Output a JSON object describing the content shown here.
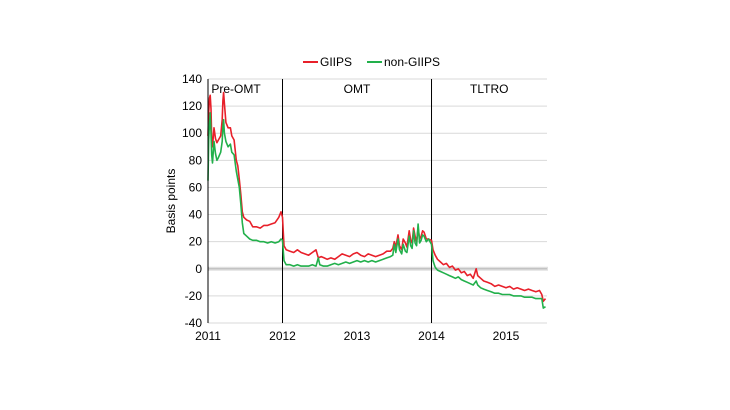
{
  "chart_data": {
    "type": "line",
    "title": "",
    "xlabel": "",
    "ylabel": "Basis points",
    "ylim": [
      -40,
      140
    ],
    "yticks": [
      -40,
      -20,
      0,
      20,
      40,
      60,
      80,
      100,
      120,
      140
    ],
    "xlim": [
      2011.0,
      2015.55
    ],
    "xticks": [
      2011,
      2012,
      2013,
      2014,
      2015
    ],
    "grid": true,
    "legend": "top-center",
    "period_dividers": [
      2012.0,
      2014.0
    ],
    "period_labels": [
      "Pre-OMT",
      "OMT",
      "TLTRO"
    ],
    "series": [
      {
        "name": "GIIPS",
        "color": "#e8202a",
        "points": [
          [
            2011.0,
            98
          ],
          [
            2011.01,
            115
          ],
          [
            2011.02,
            126
          ],
          [
            2011.03,
            128
          ],
          [
            2011.04,
            118
          ],
          [
            2011.05,
            96
          ],
          [
            2011.06,
            90
          ],
          [
            2011.08,
            104
          ],
          [
            2011.1,
            96
          ],
          [
            2011.12,
            93
          ],
          [
            2011.14,
            95
          ],
          [
            2011.17,
            98
          ],
          [
            2011.19,
            110
          ],
          [
            2011.2,
            124
          ],
          [
            2011.21,
            130
          ],
          [
            2011.22,
            122
          ],
          [
            2011.24,
            108
          ],
          [
            2011.27,
            104
          ],
          [
            2011.3,
            104
          ],
          [
            2011.32,
            98
          ],
          [
            2011.35,
            95
          ],
          [
            2011.38,
            80
          ],
          [
            2011.4,
            76
          ],
          [
            2011.42,
            66
          ],
          [
            2011.44,
            55
          ],
          [
            2011.46,
            42
          ],
          [
            2011.48,
            38
          ],
          [
            2011.52,
            36
          ],
          [
            2011.56,
            35
          ],
          [
            2011.6,
            31
          ],
          [
            2011.65,
            31
          ],
          [
            2011.7,
            30
          ],
          [
            2011.75,
            32
          ],
          [
            2011.8,
            32
          ],
          [
            2011.85,
            33
          ],
          [
            2011.9,
            34
          ],
          [
            2011.95,
            38
          ],
          [
            2011.98,
            42
          ],
          [
            2012.0,
            38
          ],
          [
            2012.02,
            17
          ],
          [
            2012.05,
            14
          ],
          [
            2012.1,
            13
          ],
          [
            2012.15,
            12
          ],
          [
            2012.2,
            14
          ],
          [
            2012.25,
            12
          ],
          [
            2012.3,
            11
          ],
          [
            2012.35,
            10
          ],
          [
            2012.4,
            12
          ],
          [
            2012.45,
            14
          ],
          [
            2012.48,
            8
          ],
          [
            2012.52,
            9
          ],
          [
            2012.56,
            8
          ],
          [
            2012.6,
            7
          ],
          [
            2012.65,
            8
          ],
          [
            2012.7,
            7
          ],
          [
            2012.75,
            9
          ],
          [
            2012.8,
            11
          ],
          [
            2012.85,
            10
          ],
          [
            2012.9,
            9
          ],
          [
            2012.95,
            11
          ],
          [
            2013.0,
            12
          ],
          [
            2013.05,
            10
          ],
          [
            2013.1,
            9
          ],
          [
            2013.15,
            11
          ],
          [
            2013.2,
            10
          ],
          [
            2013.25,
            9
          ],
          [
            2013.3,
            10
          ],
          [
            2013.35,
            11
          ],
          [
            2013.4,
            13
          ],
          [
            2013.45,
            13
          ],
          [
            2013.48,
            15
          ],
          [
            2013.5,
            20
          ],
          [
            2013.52,
            16
          ],
          [
            2013.55,
            25
          ],
          [
            2013.57,
            17
          ],
          [
            2013.6,
            14
          ],
          [
            2013.62,
            22
          ],
          [
            2013.65,
            19
          ],
          [
            2013.67,
            16
          ],
          [
            2013.7,
            28
          ],
          [
            2013.72,
            21
          ],
          [
            2013.74,
            19
          ],
          [
            2013.76,
            30
          ],
          [
            2013.78,
            24
          ],
          [
            2013.8,
            20
          ],
          [
            2013.82,
            30
          ],
          [
            2013.84,
            22
          ],
          [
            2013.86,
            24
          ],
          [
            2013.88,
            28
          ],
          [
            2013.9,
            27
          ],
          [
            2013.93,
            22
          ],
          [
            2013.96,
            22
          ],
          [
            2014.0,
            21
          ],
          [
            2014.02,
            14
          ],
          [
            2014.05,
            10
          ],
          [
            2014.08,
            7
          ],
          [
            2014.12,
            5
          ],
          [
            2014.16,
            3
          ],
          [
            2014.2,
            4
          ],
          [
            2014.24,
            1
          ],
          [
            2014.28,
            2
          ],
          [
            2014.32,
            -1
          ],
          [
            2014.36,
            0
          ],
          [
            2014.4,
            -3
          ],
          [
            2014.44,
            -2
          ],
          [
            2014.48,
            -5
          ],
          [
            2014.52,
            -4
          ],
          [
            2014.56,
            -7
          ],
          [
            2014.6,
            0
          ],
          [
            2014.62,
            -5
          ],
          [
            2014.66,
            -7
          ],
          [
            2014.7,
            -9
          ],
          [
            2014.75,
            -10
          ],
          [
            2014.8,
            -11
          ],
          [
            2014.85,
            -13
          ],
          [
            2014.9,
            -12
          ],
          [
            2014.95,
            -13
          ],
          [
            2015.0,
            -14
          ],
          [
            2015.05,
            -13
          ],
          [
            2015.1,
            -15
          ],
          [
            2015.15,
            -14
          ],
          [
            2015.2,
            -15
          ],
          [
            2015.25,
            -16
          ],
          [
            2015.3,
            -15
          ],
          [
            2015.35,
            -16
          ],
          [
            2015.4,
            -17
          ],
          [
            2015.45,
            -16
          ],
          [
            2015.48,
            -19
          ],
          [
            2015.5,
            -24
          ],
          [
            2015.53,
            -22
          ]
        ]
      },
      {
        "name": "non-GIIPS",
        "color": "#22b04b",
        "points": [
          [
            2011.0,
            65
          ],
          [
            2011.01,
            95
          ],
          [
            2011.02,
            108
          ],
          [
            2011.03,
            115
          ],
          [
            2011.04,
            100
          ],
          [
            2011.05,
            84
          ],
          [
            2011.06,
            78
          ],
          [
            2011.08,
            94
          ],
          [
            2011.1,
            85
          ],
          [
            2011.12,
            80
          ],
          [
            2011.14,
            82
          ],
          [
            2011.17,
            86
          ],
          [
            2011.19,
            94
          ],
          [
            2011.2,
            105
          ],
          [
            2011.21,
            110
          ],
          [
            2011.22,
            100
          ],
          [
            2011.24,
            94
          ],
          [
            2011.27,
            90
          ],
          [
            2011.3,
            92
          ],
          [
            2011.32,
            86
          ],
          [
            2011.35,
            84
          ],
          [
            2011.38,
            72
          ],
          [
            2011.4,
            66
          ],
          [
            2011.42,
            60
          ],
          [
            2011.44,
            48
          ],
          [
            2011.46,
            34
          ],
          [
            2011.48,
            26
          ],
          [
            2011.52,
            24
          ],
          [
            2011.56,
            22
          ],
          [
            2011.6,
            21
          ],
          [
            2011.65,
            21
          ],
          [
            2011.7,
            20
          ],
          [
            2011.75,
            20
          ],
          [
            2011.8,
            19
          ],
          [
            2011.85,
            20
          ],
          [
            2011.9,
            19
          ],
          [
            2011.95,
            20
          ],
          [
            2011.98,
            22
          ],
          [
            2012.0,
            21
          ],
          [
            2012.02,
            6
          ],
          [
            2012.05,
            3
          ],
          [
            2012.1,
            3
          ],
          [
            2012.15,
            2
          ],
          [
            2012.2,
            3
          ],
          [
            2012.25,
            2
          ],
          [
            2012.3,
            2
          ],
          [
            2012.35,
            2
          ],
          [
            2012.4,
            3
          ],
          [
            2012.45,
            2
          ],
          [
            2012.48,
            8
          ],
          [
            2012.5,
            3
          ],
          [
            2012.55,
            2
          ],
          [
            2012.6,
            2
          ],
          [
            2012.65,
            3
          ],
          [
            2012.7,
            4
          ],
          [
            2012.75,
            3
          ],
          [
            2012.8,
            4
          ],
          [
            2012.85,
            5
          ],
          [
            2012.9,
            4
          ],
          [
            2012.95,
            5
          ],
          [
            2013.0,
            6
          ],
          [
            2013.05,
            5
          ],
          [
            2013.1,
            6
          ],
          [
            2013.15,
            5
          ],
          [
            2013.2,
            6
          ],
          [
            2013.25,
            5
          ],
          [
            2013.3,
            6
          ],
          [
            2013.35,
            7
          ],
          [
            2013.4,
            8
          ],
          [
            2013.45,
            9
          ],
          [
            2013.48,
            10
          ],
          [
            2013.5,
            18
          ],
          [
            2013.52,
            12
          ],
          [
            2013.55,
            22
          ],
          [
            2013.57,
            14
          ],
          [
            2013.6,
            11
          ],
          [
            2013.62,
            18
          ],
          [
            2013.65,
            13
          ],
          [
            2013.67,
            12
          ],
          [
            2013.7,
            24
          ],
          [
            2013.72,
            17
          ],
          [
            2013.74,
            15
          ],
          [
            2013.76,
            28
          ],
          [
            2013.78,
            19
          ],
          [
            2013.8,
            17
          ],
          [
            2013.82,
            33
          ],
          [
            2013.84,
            19
          ],
          [
            2013.86,
            21
          ],
          [
            2013.88,
            25
          ],
          [
            2013.9,
            24
          ],
          [
            2013.93,
            20
          ],
          [
            2013.96,
            22
          ],
          [
            2014.0,
            18
          ],
          [
            2014.02,
            6
          ],
          [
            2014.05,
            1
          ],
          [
            2014.08,
            -1
          ],
          [
            2014.12,
            -2
          ],
          [
            2014.16,
            -3
          ],
          [
            2014.2,
            -4
          ],
          [
            2014.24,
            -5
          ],
          [
            2014.28,
            -6
          ],
          [
            2014.32,
            -7
          ],
          [
            2014.36,
            -6
          ],
          [
            2014.4,
            -8
          ],
          [
            2014.44,
            -9
          ],
          [
            2014.48,
            -10
          ],
          [
            2014.52,
            -11
          ],
          [
            2014.56,
            -12
          ],
          [
            2014.6,
            -9
          ],
          [
            2014.62,
            -12
          ],
          [
            2014.66,
            -14
          ],
          [
            2014.7,
            -15
          ],
          [
            2014.75,
            -16
          ],
          [
            2014.8,
            -17
          ],
          [
            2014.85,
            -18
          ],
          [
            2014.9,
            -18
          ],
          [
            2014.95,
            -19
          ],
          [
            2015.0,
            -19
          ],
          [
            2015.05,
            -19
          ],
          [
            2015.1,
            -20
          ],
          [
            2015.15,
            -20
          ],
          [
            2015.2,
            -20
          ],
          [
            2015.25,
            -21
          ],
          [
            2015.3,
            -21
          ],
          [
            2015.35,
            -21
          ],
          [
            2015.4,
            -22
          ],
          [
            2015.45,
            -22
          ],
          [
            2015.48,
            -22
          ],
          [
            2015.5,
            -29
          ],
          [
            2015.53,
            -28
          ]
        ]
      }
    ]
  }
}
